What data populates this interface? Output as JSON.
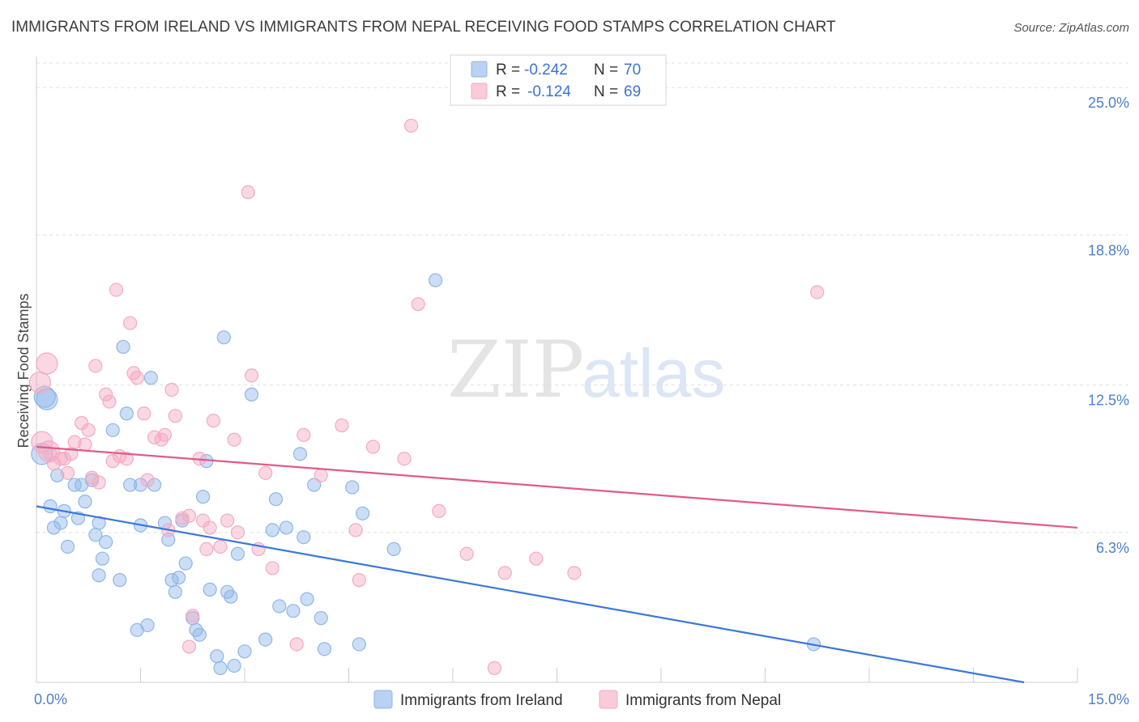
{
  "chart_data": {
    "type": "scatter",
    "title": "IMMIGRANTS FROM IRELAND VS IMMIGRANTS FROM NEPAL RECEIVING FOOD STAMPS CORRELATION CHART",
    "source": "Source: ZipAtlas.com",
    "ylabel": "Receiving Food Stamps",
    "xlabel": "",
    "xlim": [
      0,
      15
    ],
    "ylim": [
      0,
      26.3
    ],
    "x_tick_labels": [
      "0.0%",
      "15.0%"
    ],
    "y_ticks": [
      {
        "value": 6.3,
        "label": "6.3%"
      },
      {
        "value": 12.5,
        "label": "12.5%"
      },
      {
        "value": 18.8,
        "label": "18.8%"
      },
      {
        "value": 25.0,
        "label": "25.0%"
      }
    ],
    "watermark": {
      "left": "ZIP",
      "right": "atlas"
    },
    "legend": [
      {
        "r_label": "R =",
        "r_value": "-0.242",
        "n_label": "N =",
        "n_value": "70"
      },
      {
        "r_label": "R =",
        "r_value": "-0.124",
        "n_label": "N =",
        "n_value": "69"
      }
    ],
    "series": [
      {
        "name": "Immigrants from Ireland",
        "color": "#8fb6e8",
        "line_color": "#3a78d8",
        "trend": {
          "x0": 0.0,
          "y0": 7.4,
          "x1": 15.0,
          "y1": -0.4
        },
        "points": [
          [
            0.08,
            9.6
          ],
          [
            0.15,
            11.9
          ],
          [
            0.2,
            7.4
          ],
          [
            0.25,
            6.5
          ],
          [
            0.3,
            8.7
          ],
          [
            0.35,
            6.7
          ],
          [
            0.4,
            7.2
          ],
          [
            0.45,
            5.7
          ],
          [
            0.6,
            6.9
          ],
          [
            0.65,
            8.3
          ],
          [
            0.7,
            7.6
          ],
          [
            0.8,
            8.5
          ],
          [
            0.85,
            6.2
          ],
          [
            0.9,
            4.5
          ],
          [
            0.95,
            5.2
          ],
          [
            0.55,
            8.3
          ],
          [
            1.1,
            10.6
          ],
          [
            1.2,
            4.3
          ],
          [
            1.25,
            14.1
          ],
          [
            1.3,
            11.3
          ],
          [
            1.35,
            8.3
          ],
          [
            1.5,
            8.3
          ],
          [
            1.45,
            2.2
          ],
          [
            1.6,
            2.4
          ],
          [
            1.65,
            12.8
          ],
          [
            1.7,
            8.3
          ],
          [
            1.5,
            6.6
          ],
          [
            1.9,
            6.0
          ],
          [
            1.85,
            6.7
          ],
          [
            1.95,
            4.3
          ],
          [
            2.0,
            3.8
          ],
          [
            2.1,
            6.8
          ],
          [
            2.15,
            5.0
          ],
          [
            2.25,
            2.7
          ],
          [
            2.3,
            2.2
          ],
          [
            2.05,
            4.4
          ],
          [
            2.4,
            7.8
          ],
          [
            2.45,
            9.3
          ],
          [
            2.5,
            3.9
          ],
          [
            2.6,
            1.1
          ],
          [
            2.65,
            0.6
          ],
          [
            2.7,
            14.5
          ],
          [
            2.75,
            3.8
          ],
          [
            2.8,
            3.6
          ],
          [
            2.9,
            5.4
          ],
          [
            2.85,
            0.7
          ],
          [
            3.0,
            1.3
          ],
          [
            2.35,
            2.0
          ],
          [
            3.1,
            12.1
          ],
          [
            3.3,
            1.8
          ],
          [
            3.4,
            6.4
          ],
          [
            3.5,
            3.2
          ],
          [
            3.45,
            7.7
          ],
          [
            3.6,
            6.5
          ],
          [
            3.7,
            3.0
          ],
          [
            3.8,
            9.6
          ],
          [
            3.85,
            6.1
          ],
          [
            3.9,
            3.5
          ],
          [
            4.0,
            8.3
          ],
          [
            4.1,
            2.7
          ],
          [
            4.15,
            1.4
          ],
          [
            4.55,
            8.2
          ],
          [
            4.7,
            7.1
          ],
          [
            4.65,
            1.6
          ],
          [
            5.15,
            5.6
          ],
          [
            5.75,
            16.9
          ],
          [
            11.2,
            1.6
          ],
          [
            0.9,
            6.7
          ],
          [
            1.0,
            5.9
          ],
          [
            0.12,
            12.0
          ]
        ]
      },
      {
        "name": "Immigrants from Nepal",
        "color": "#f5a9c1",
        "line_color": "#e05a8a",
        "trend": {
          "x0": 0.0,
          "y0": 9.9,
          "x1": 15.0,
          "y1": 6.5
        },
        "points": [
          [
            0.05,
            12.6
          ],
          [
            0.08,
            10.1
          ],
          [
            0.15,
            13.4
          ],
          [
            0.2,
            9.6
          ],
          [
            0.25,
            9.2
          ],
          [
            0.35,
            9.4
          ],
          [
            0.45,
            8.8
          ],
          [
            0.5,
            9.6
          ],
          [
            0.55,
            10.1
          ],
          [
            0.65,
            10.9
          ],
          [
            0.75,
            10.6
          ],
          [
            0.8,
            8.6
          ],
          [
            0.9,
            8.4
          ],
          [
            0.85,
            13.3
          ],
          [
            1.0,
            12.1
          ],
          [
            1.05,
            11.8
          ],
          [
            1.1,
            9.3
          ],
          [
            1.15,
            16.5
          ],
          [
            1.3,
            9.4
          ],
          [
            1.35,
            15.1
          ],
          [
            1.4,
            13.0
          ],
          [
            1.45,
            12.8
          ],
          [
            1.55,
            11.3
          ],
          [
            1.6,
            8.5
          ],
          [
            1.7,
            10.3
          ],
          [
            1.8,
            10.2
          ],
          [
            1.85,
            10.4
          ],
          [
            1.95,
            12.3
          ],
          [
            2.0,
            11.2
          ],
          [
            2.1,
            6.9
          ],
          [
            2.2,
            1.5
          ],
          [
            2.25,
            2.8
          ],
          [
            2.35,
            9.4
          ],
          [
            2.4,
            6.8
          ],
          [
            2.5,
            6.5
          ],
          [
            2.55,
            11.0
          ],
          [
            2.65,
            5.7
          ],
          [
            2.75,
            6.8
          ],
          [
            2.85,
            10.2
          ],
          [
            2.9,
            6.3
          ],
          [
            3.1,
            12.9
          ],
          [
            3.05,
            20.6
          ],
          [
            3.2,
            5.6
          ],
          [
            3.3,
            8.8
          ],
          [
            3.4,
            4.8
          ],
          [
            3.75,
            1.6
          ],
          [
            3.85,
            10.4
          ],
          [
            4.1,
            8.7
          ],
          [
            4.4,
            10.8
          ],
          [
            4.6,
            6.4
          ],
          [
            4.65,
            4.3
          ],
          [
            4.85,
            9.9
          ],
          [
            5.3,
            9.4
          ],
          [
            5.4,
            23.4
          ],
          [
            5.5,
            15.9
          ],
          [
            5.8,
            7.2
          ],
          [
            6.2,
            5.4
          ],
          [
            6.6,
            0.6
          ],
          [
            6.75,
            4.6
          ],
          [
            7.2,
            5.2
          ],
          [
            7.75,
            4.6
          ],
          [
            11.25,
            16.4
          ],
          [
            2.45,
            5.6
          ],
          [
            1.2,
            9.5
          ],
          [
            0.4,
            9.4
          ],
          [
            2.2,
            7.0
          ],
          [
            0.7,
            10.0
          ],
          [
            1.9,
            6.4
          ],
          [
            0.18,
            9.7
          ]
        ]
      }
    ],
    "bottom_legend": [
      "Immigrants from Ireland",
      "Immigrants from Nepal"
    ]
  }
}
